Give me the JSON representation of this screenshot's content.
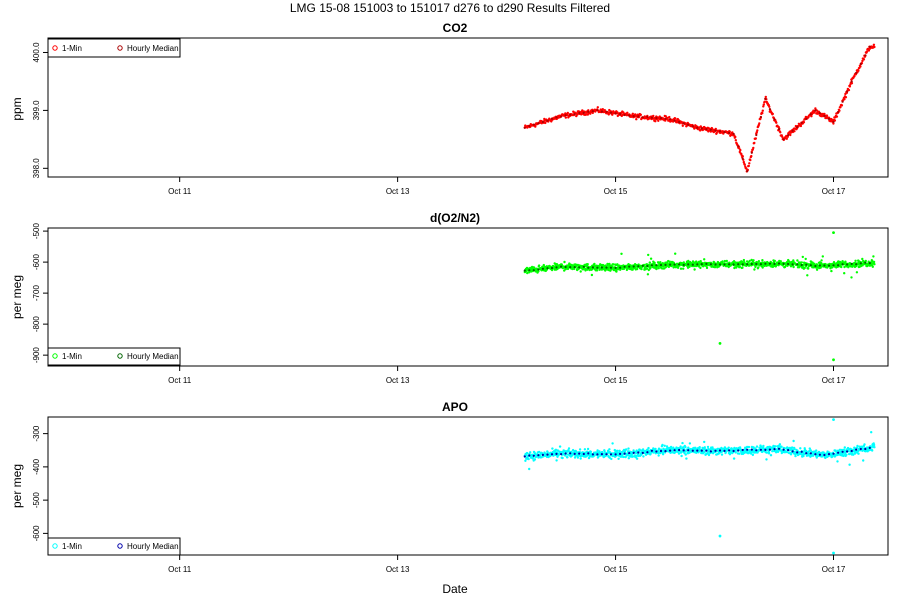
{
  "title": "LMG   15-08    151003 to 151017    d276 to d290   Results Filtered",
  "xlabel": "Date",
  "x_ticks": [
    "Oct 11",
    "Oct 13",
    "Oct 15",
    "Oct 17"
  ],
  "chart_data": [
    {
      "type": "scatter",
      "title": "CO2",
      "ylabel": "ppm",
      "x_range": [
        "Oct 9 19:00",
        "Oct 17 12:00"
      ],
      "ylim": [
        397.85,
        400.25
      ],
      "y_ticks": [
        "398.0",
        "399.0",
        "400.0"
      ],
      "legend": {
        "position": "top-left",
        "entries": [
          "1-Min",
          "Hourly Median"
        ]
      },
      "series": [
        {
          "name": "1-Min",
          "color": "#ff0000",
          "x_start": "Oct 14 04:00",
          "x_end": "Oct 17 09:00",
          "anchors": [
            [
              "Oct 14 04:00",
              398.7
            ],
            [
              "Oct 14 12:00",
              398.9
            ],
            [
              "Oct 14 20:00",
              399.0
            ],
            [
              "Oct 15 04:00",
              398.9
            ],
            [
              "Oct 15 12:00",
              398.85
            ],
            [
              "Oct 15 18:00",
              398.7
            ],
            [
              "Oct 16 02:00",
              398.6
            ],
            [
              "Oct 16 05:00",
              397.95
            ],
            [
              "Oct 16 09:00",
              399.2
            ],
            [
              "Oct 16 13:00",
              398.5
            ],
            [
              "Oct 16 20:00",
              399.0
            ],
            [
              "Oct 17 00:00",
              398.8
            ],
            [
              "Oct 17 04:00",
              399.5
            ],
            [
              "Oct 17 08:00",
              400.1
            ]
          ]
        },
        {
          "name": "Hourly Median",
          "color": "#aa0000"
        }
      ]
    },
    {
      "type": "scatter",
      "title": "d(O2/N2)",
      "ylabel": "per meg",
      "x_range": [
        "Oct 9 19:00",
        "Oct 17 12:00"
      ],
      "ylim": [
        -935,
        -490
      ],
      "y_ticks": [
        "-900",
        "-800",
        "-700",
        "-600",
        "-500"
      ],
      "legend": {
        "position": "bottom-left",
        "entries": [
          "1-Min",
          "Hourly Median"
        ]
      },
      "series": [
        {
          "name": "1-Min",
          "color": "#00ff00",
          "x_start": "Oct 14 04:00",
          "x_end": "Oct 17 09:00",
          "anchors": [
            [
              "Oct 14 04:00",
              -628
            ],
            [
              "Oct 14 12:00",
              -615
            ],
            [
              "Oct 15 00:00",
              -618
            ],
            [
              "Oct 15 12:00",
              -608
            ],
            [
              "Oct 16 00:00",
              -607
            ],
            [
              "Oct 16 12:00",
              -605
            ],
            [
              "Oct 16 22:00",
              -612
            ],
            [
              "Oct 17 09:00",
              -602
            ]
          ],
          "outliers": [
            [
              "Oct 15 23:00",
              -862
            ],
            [
              "Oct 17 00:00",
              -915
            ],
            [
              "Oct 17 00:00",
              -505
            ]
          ]
        },
        {
          "name": "Hourly Median",
          "color": "#006400"
        }
      ]
    },
    {
      "type": "scatter",
      "title": "APO",
      "ylabel": "per meg",
      "x_range": [
        "Oct 9 19:00",
        "Oct 17 12:00"
      ],
      "ylim": [
        -665,
        -250
      ],
      "y_ticks": [
        "-600",
        "-500",
        "-400",
        "-300"
      ],
      "legend": {
        "position": "bottom-left",
        "entries": [
          "1-Min",
          "Hourly Median"
        ]
      },
      "series": [
        {
          "name": "1-Min",
          "color": "#00ffff",
          "x_start": "Oct 14 04:00",
          "x_end": "Oct 17 09:00",
          "anchors": [
            [
              "Oct 14 04:00",
              -368
            ],
            [
              "Oct 14 12:00",
              -360
            ],
            [
              "Oct 15 00:00",
              -362
            ],
            [
              "Oct 15 12:00",
              -350
            ],
            [
              "Oct 16 00:00",
              -352
            ],
            [
              "Oct 16 12:00",
              -347
            ],
            [
              "Oct 16 22:00",
              -365
            ],
            [
              "Oct 17 09:00",
              -340
            ]
          ],
          "outliers": [
            [
              "Oct 15 23:00",
              -608
            ],
            [
              "Oct 17 00:00",
              -660
            ],
            [
              "Oct 17 00:00",
              -258
            ]
          ]
        },
        {
          "name": "Hourly Median",
          "color": "#0000aa"
        }
      ]
    }
  ]
}
